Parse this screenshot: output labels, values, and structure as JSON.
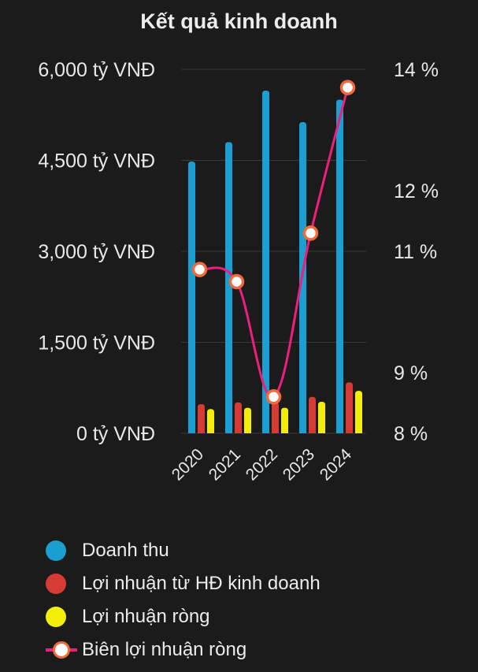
{
  "title": "Kết quả kinh doanh",
  "colors": {
    "revenue": "#1a9fd0",
    "operating_profit": "#d63a35",
    "net_profit": "#f2ee0a",
    "margin_line": "#ee1e7c",
    "margin_marker_border": "#f26a3a",
    "grid": "#3a3a3a",
    "text": "#e8e8e8"
  },
  "legend": {
    "revenue": "Doanh thu",
    "operating_profit": "Lợi nhuận từ HĐ kinh doanh",
    "net_profit": "Lợi nhuận ròng",
    "margin": "Biên lợi nhuận ròng"
  },
  "chart_data": {
    "type": "bar",
    "title": "Kết quả kinh doanh",
    "categories": [
      "2020",
      "2021",
      "2022",
      "2023",
      "2024"
    ],
    "y_left": {
      "range": [
        0,
        6000
      ],
      "ticks": [
        0,
        1500,
        3000,
        4500,
        6000
      ],
      "tick_labels": [
        "0 tỷ VNĐ",
        "1,500 tỷ VNĐ",
        "3,000 tỷ VNĐ",
        "4,500 tỷ VNĐ",
        "6,000 tỷ VNĐ"
      ]
    },
    "y_right": {
      "range": [
        8,
        14
      ],
      "ticks": [
        8,
        9,
        11,
        12,
        14
      ],
      "tick_labels": [
        "8 %",
        "9 %",
        "11 %",
        "12 %",
        "14 %"
      ]
    },
    "grid": true,
    "legend_position": "bottom",
    "series": [
      {
        "name": "Doanh thu",
        "type": "bar",
        "axis": "left",
        "values": [
          4480,
          4800,
          5650,
          5130,
          5500
        ]
      },
      {
        "name": "Lợi nhuận từ HĐ kinh doanh",
        "type": "bar",
        "axis": "left",
        "values": [
          480,
          510,
          510,
          600,
          840
        ]
      },
      {
        "name": "Lợi nhuận ròng",
        "type": "bar",
        "axis": "left",
        "values": [
          400,
          420,
          420,
          520,
          700
        ]
      },
      {
        "name": "Biên lợi nhuận ròng",
        "type": "line",
        "axis": "right",
        "values": [
          10.7,
          10.5,
          8.6,
          11.3,
          13.7
        ]
      }
    ]
  }
}
